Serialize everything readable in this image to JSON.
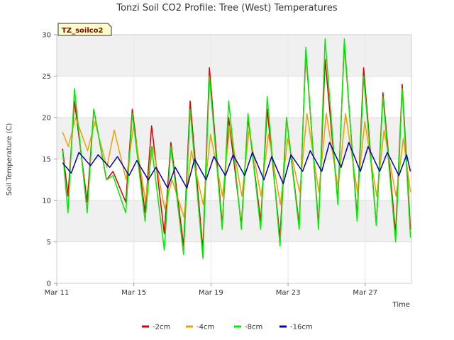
{
  "chart_data": {
    "type": "line",
    "title": "Tonzi Soil CO2 Profile: Tree (West) Temperatures",
    "badge": "TZ_soilco2",
    "xlabel": "Time",
    "ylabel": "Soil Temperature (C)",
    "ylim": [
      0,
      30
    ],
    "yticks": [
      0,
      5,
      10,
      15,
      20,
      25,
      30
    ],
    "xlim_days": [
      11,
      29.4
    ],
    "xticks": [
      {
        "label": "Mar 11",
        "day": 11
      },
      {
        "label": "Mar 15",
        "day": 15
      },
      {
        "label": "Mar 19",
        "day": 19
      },
      {
        "label": "Mar 23",
        "day": 23
      },
      {
        "label": "Mar 27",
        "day": 27
      }
    ],
    "grid": true,
    "legend_position": "bottom",
    "daily": {
      "start_day": 11.3,
      "days": 18,
      "minus2_min": [
        10.5,
        9.8,
        12.5,
        9.8,
        8.5,
        6.0,
        4.5,
        4.0,
        7.0,
        7.0,
        7.5,
        5.5,
        7.0,
        7.0,
        10.0,
        8.0,
        7.0,
        6.0
      ],
      "minus2_max": [
        22.0,
        21.0,
        13.5,
        21.0,
        19.0,
        17.0,
        22.0,
        26.0,
        20.0,
        20.0,
        21.0,
        20.0,
        28.0,
        27.0,
        29.0,
        26.0,
        23.0,
        24.0
      ],
      "minus4_min": [
        16.5,
        16.0,
        14.0,
        12.5,
        10.0,
        9.0,
        8.0,
        9.5,
        10.5,
        10.5,
        10.5,
        9.5,
        11.0,
        11.0,
        11.5,
        11.0,
        10.5,
        10.5
      ],
      "minus4_max": [
        20.0,
        19.5,
        18.5,
        19.0,
        16.5,
        12.5,
        16.0,
        18.0,
        19.0,
        18.5,
        18.0,
        17.5,
        20.5,
        20.5,
        20.5,
        19.5,
        18.5,
        17.5
      ],
      "minus8_min": [
        8.5,
        8.5,
        12.5,
        8.5,
        7.5,
        4.0,
        3.5,
        3.0,
        6.5,
        6.5,
        6.5,
        4.5,
        6.5,
        6.5,
        9.5,
        7.5,
        7.0,
        5.0
      ],
      "minus8_max": [
        23.5,
        21.0,
        13.0,
        20.5,
        16.5,
        16.5,
        21.0,
        25.0,
        22.0,
        20.5,
        22.5,
        20.0,
        28.5,
        29.5,
        29.5,
        25.0,
        22.5,
        23.5
      ],
      "minus16_min": [
        13.3,
        14.2,
        14.0,
        13.0,
        12.5,
        11.5,
        11.5,
        12.5,
        13.0,
        13.0,
        12.5,
        12.0,
        13.5,
        13.5,
        14.0,
        13.5,
        13.5,
        13.0
      ],
      "minus16_max": [
        15.8,
        15.5,
        15.3,
        14.8,
        14.0,
        14.0,
        15.0,
        15.3,
        15.5,
        15.8,
        15.3,
        15.5,
        16.0,
        17.0,
        17.0,
        16.5,
        15.8,
        15.5
      ]
    },
    "series": [
      {
        "key": "minus2",
        "name": "-2cm",
        "color": "#dd0000"
      },
      {
        "key": "minus4",
        "name": "-4cm",
        "color": "#f0a000"
      },
      {
        "key": "minus8",
        "name": "-8cm",
        "color": "#00ee00"
      },
      {
        "key": "minus16",
        "name": "-16cm",
        "color": "#0000bb"
      }
    ]
  }
}
